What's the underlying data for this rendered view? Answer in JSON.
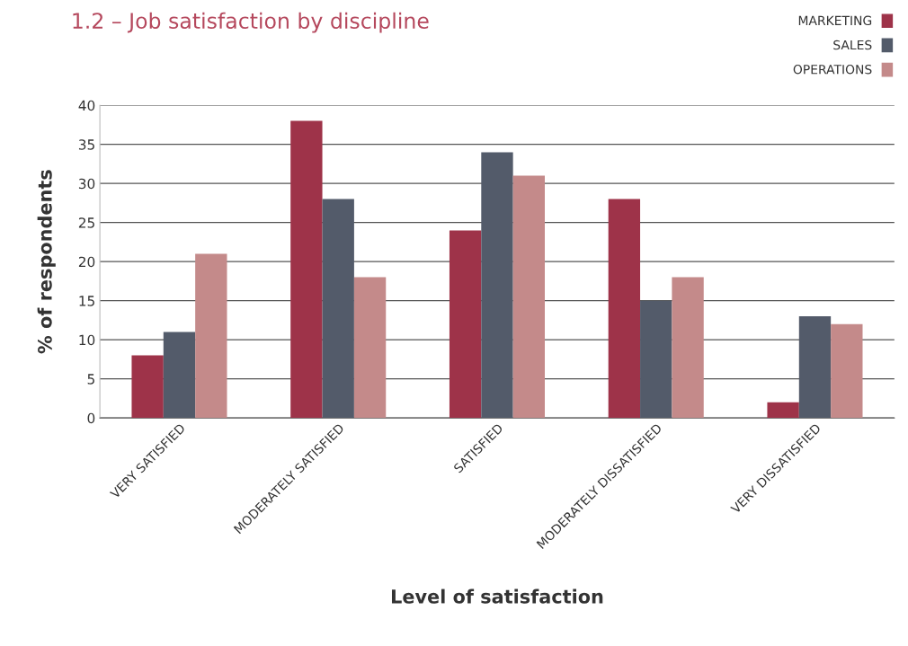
{
  "chart_data": {
    "type": "bar",
    "title": "1.2 – Job satisfaction by discipline",
    "xlabel": "Level of satisfaction",
    "ylabel": "% of respondents",
    "categories": [
      "VERY SATISFIED",
      "MODERATELY SATISFIED",
      "SATISFIED",
      "MODERATELY DISSATISFIED",
      "VERY DISSATISFIED"
    ],
    "series": [
      {
        "name": "MARKETING",
        "color": "#9e3349",
        "values": [
          8,
          38,
          24,
          28,
          2
        ]
      },
      {
        "name": "SALES",
        "color": "#535b6a",
        "values": [
          11,
          28,
          34,
          15,
          13
        ]
      },
      {
        "name": "OPERATIONS",
        "color": "#c48a8a",
        "values": [
          21,
          18,
          31,
          18,
          12
        ]
      }
    ],
    "ylim": [
      0,
      40
    ],
    "yticks": [
      0,
      5,
      10,
      15,
      20,
      25,
      30,
      35,
      40
    ],
    "grid": "y",
    "legend": "top right"
  }
}
